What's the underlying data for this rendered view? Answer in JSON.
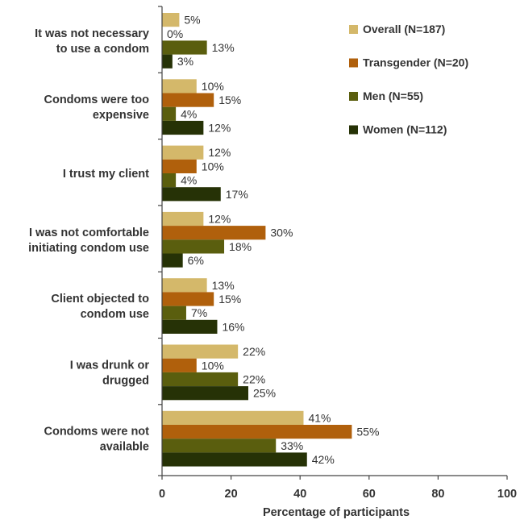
{
  "chart_data": {
    "type": "bar",
    "orientation": "horizontal",
    "categories": [
      [
        "It was not necessary",
        "to use a condom"
      ],
      [
        "Condoms were too",
        "expensive"
      ],
      [
        "I trust my client"
      ],
      [
        "I was not comfortable",
        "initiating condom use"
      ],
      [
        "Client objected to",
        "condom use"
      ],
      [
        "I was drunk or",
        "drugged"
      ],
      [
        "Condoms were not",
        "available"
      ]
    ],
    "series": [
      {
        "name": "Overall (N=187)",
        "color": "#D4B86A",
        "values": [
          5,
          10,
          12,
          12,
          13,
          22,
          41
        ]
      },
      {
        "name": "Transgender (N=20)",
        "color": "#B0600C",
        "values": [
          0,
          15,
          10,
          30,
          15,
          10,
          55
        ]
      },
      {
        "name": "Men (N=55)",
        "color": "#5A5E0E",
        "values": [
          13,
          4,
          4,
          18,
          7,
          22,
          33
        ]
      },
      {
        "name": "Women (N=112)",
        "color": "#263206",
        "values": [
          3,
          12,
          17,
          6,
          16,
          25,
          42
        ]
      }
    ],
    "value_suffix": "%",
    "xlabel": "Percentage of participants",
    "xlim": [
      0,
      100
    ],
    "xticks": [
      0,
      20,
      40,
      60,
      80,
      100
    ],
    "grid": false,
    "legend_position": "top-right"
  }
}
